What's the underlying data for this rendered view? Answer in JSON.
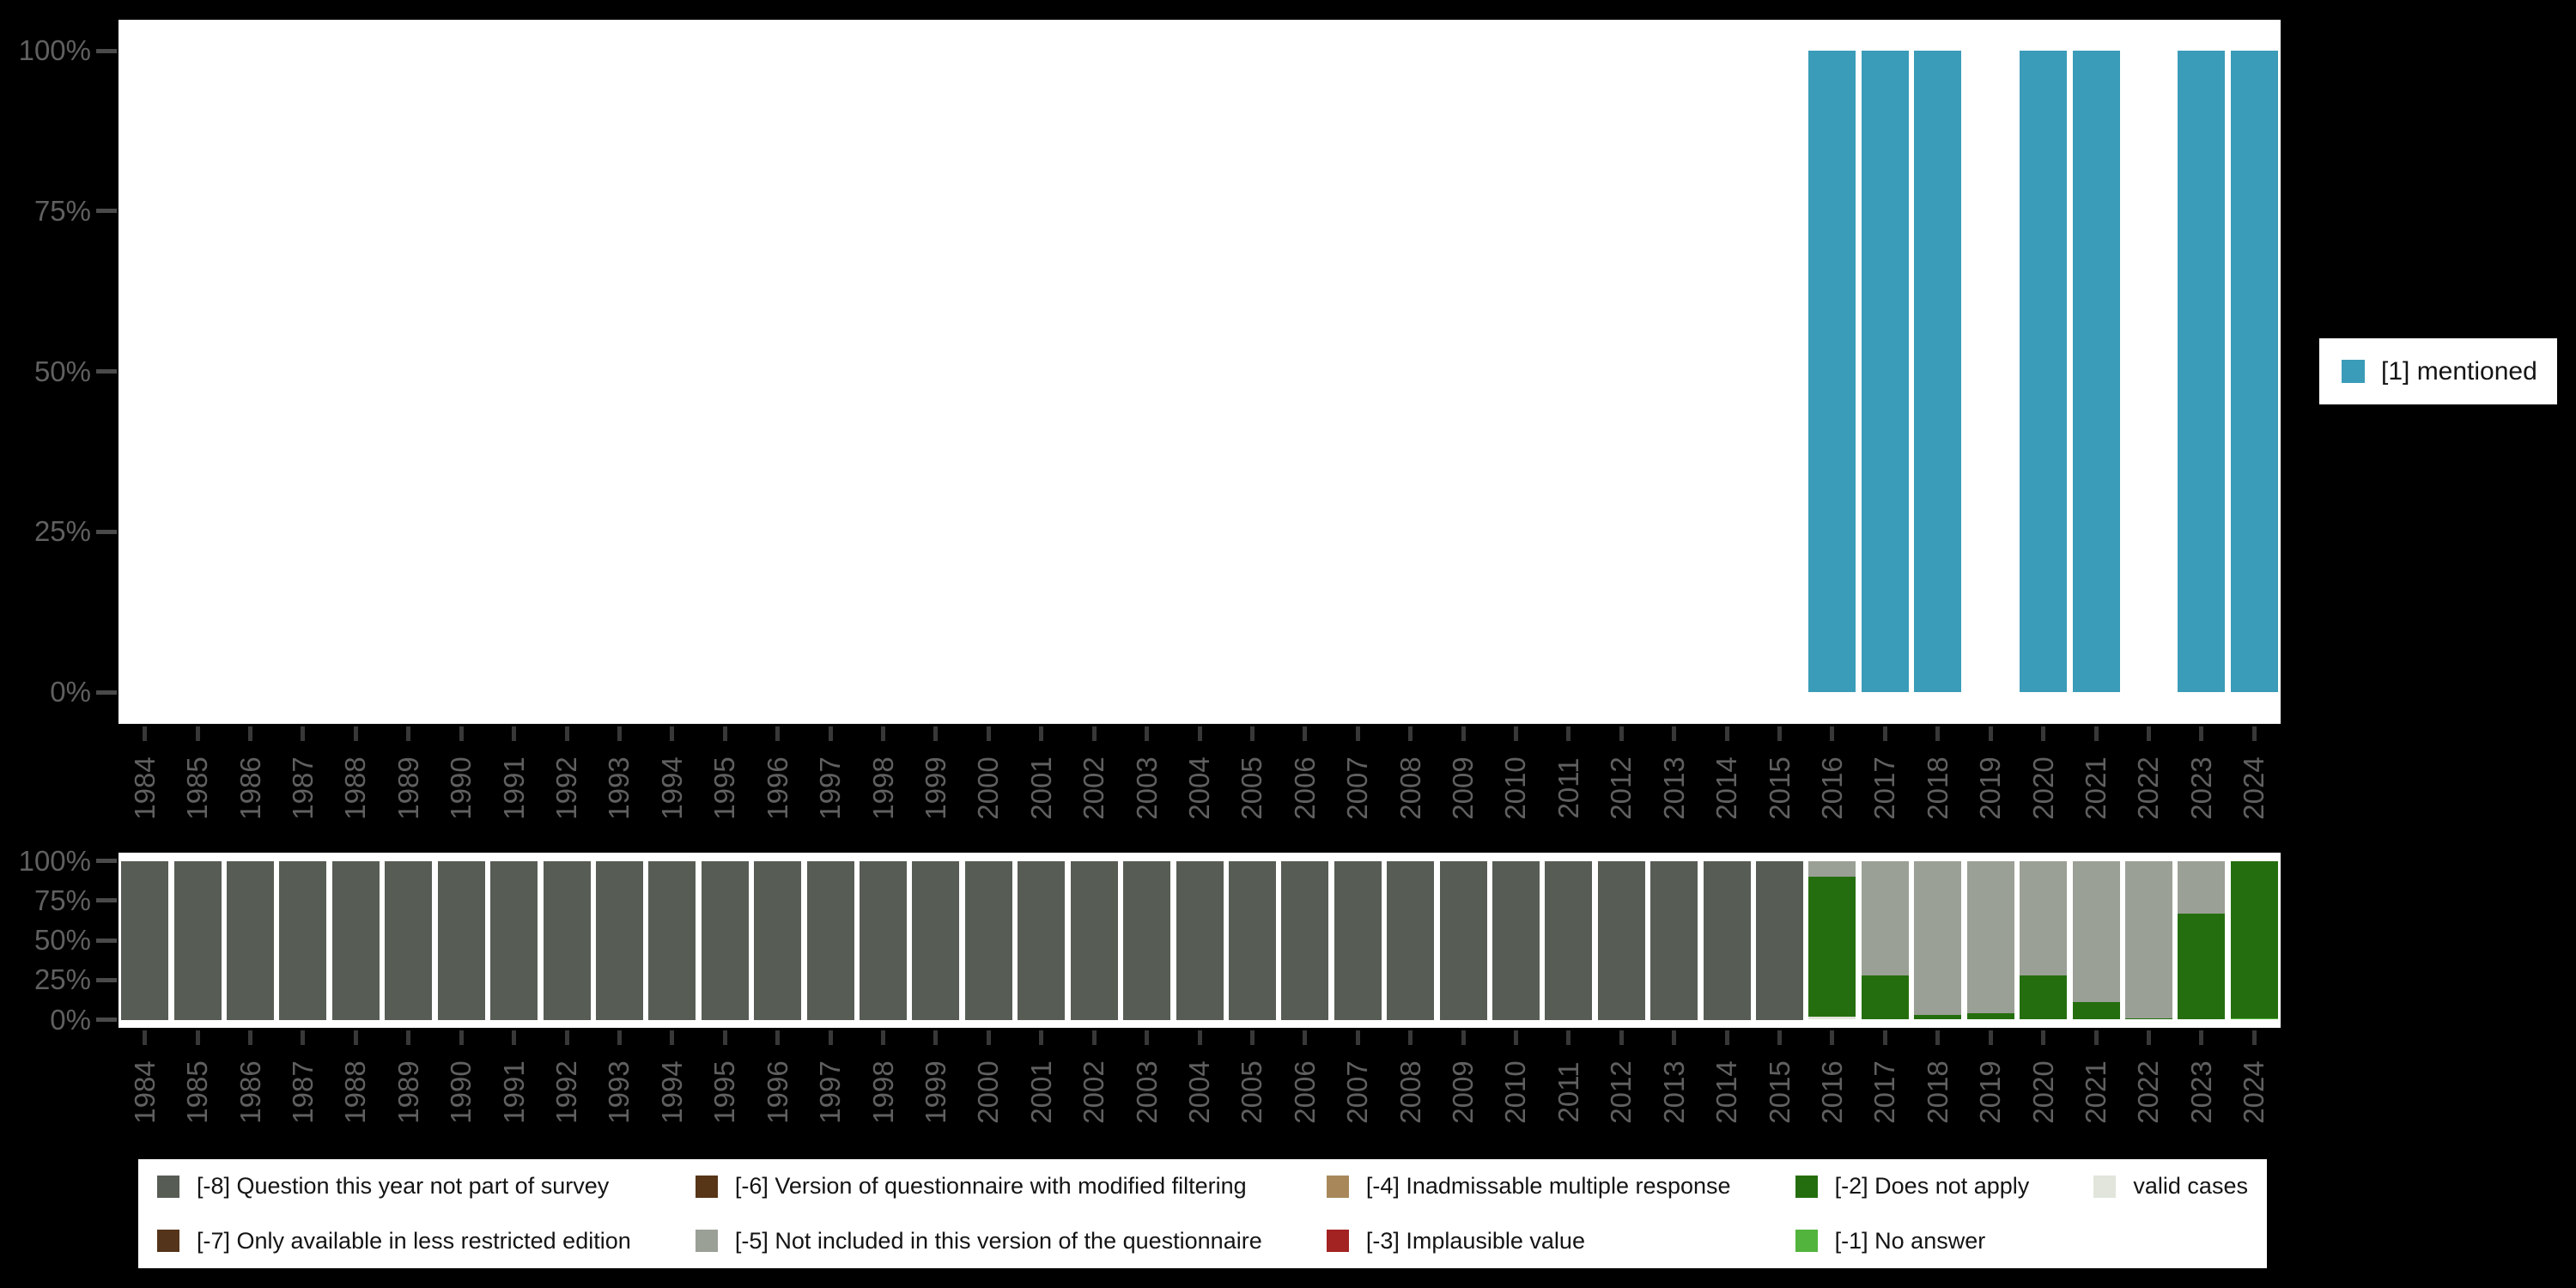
{
  "figure": {
    "background": "#000000",
    "panel_background": "#ffffff"
  },
  "palette": {
    "mentioned": "#3a9cb8",
    "q_not_part": "#575d55",
    "less_restricted": "#54341a",
    "modified_filtering": "#573517",
    "not_included": "#9aa095",
    "inadmissable": "#a8885a",
    "implausible": "#a32222",
    "does_not_apply": "#256e0f",
    "no_answer": "#52b43c",
    "valid": "#e1e5db",
    "axis_text": "#606060",
    "y_tick": "#4a4a4a",
    "x_tick": "#383838",
    "legend_text": "#141414"
  },
  "chart_data": [
    {
      "id": "mentioned_percent_by_year",
      "type": "bar",
      "title": "",
      "categories": [
        "1984",
        "1985",
        "1986",
        "1987",
        "1988",
        "1989",
        "1990",
        "1991",
        "1992",
        "1993",
        "1994",
        "1995",
        "1996",
        "1997",
        "1998",
        "1999",
        "2000",
        "2001",
        "2002",
        "2003",
        "2004",
        "2005",
        "2006",
        "2007",
        "2008",
        "2009",
        "2010",
        "2011",
        "2012",
        "2013",
        "2014",
        "2015",
        "2016",
        "2017",
        "2018",
        "2019",
        "2020",
        "2021",
        "2022",
        "2023",
        "2024"
      ],
      "series": [
        {
          "name": "[1] mentioned",
          "color_key": "mentioned",
          "values": [
            null,
            null,
            null,
            null,
            null,
            null,
            null,
            null,
            null,
            null,
            null,
            null,
            null,
            null,
            null,
            null,
            null,
            null,
            null,
            null,
            null,
            null,
            null,
            null,
            null,
            null,
            null,
            null,
            null,
            null,
            null,
            null,
            100,
            100,
            100,
            null,
            100,
            100,
            null,
            100,
            100
          ]
        }
      ],
      "ylim": [
        0,
        100
      ],
      "ytick_labels": [
        "100%",
        "75%",
        "50%",
        "25%",
        "0%"
      ],
      "grid": false,
      "legend_position": "right"
    },
    {
      "id": "missing_values_percent_by_year",
      "type": "stacked-bar",
      "title": "",
      "categories": [
        "1984",
        "1985",
        "1986",
        "1987",
        "1988",
        "1989",
        "1990",
        "1991",
        "1992",
        "1993",
        "1994",
        "1995",
        "1996",
        "1997",
        "1998",
        "1999",
        "2000",
        "2001",
        "2002",
        "2003",
        "2004",
        "2005",
        "2006",
        "2007",
        "2008",
        "2009",
        "2010",
        "2011",
        "2012",
        "2013",
        "2014",
        "2015",
        "2016",
        "2017",
        "2018",
        "2019",
        "2020",
        "2021",
        "2022",
        "2023",
        "2024"
      ],
      "stack_order_bottom_to_top": [
        "valid",
        "no_answer",
        "does_not_apply",
        "not_included",
        "q_not_part"
      ],
      "bars": [
        [
          [
            "q_not_part",
            100
          ]
        ],
        [
          [
            "q_not_part",
            100
          ]
        ],
        [
          [
            "q_not_part",
            100
          ]
        ],
        [
          [
            "q_not_part",
            100
          ]
        ],
        [
          [
            "q_not_part",
            100
          ]
        ],
        [
          [
            "q_not_part",
            100
          ]
        ],
        [
          [
            "q_not_part",
            100
          ]
        ],
        [
          [
            "q_not_part",
            100
          ]
        ],
        [
          [
            "q_not_part",
            100
          ]
        ],
        [
          [
            "q_not_part",
            100
          ]
        ],
        [
          [
            "q_not_part",
            100
          ]
        ],
        [
          [
            "q_not_part",
            100
          ]
        ],
        [
          [
            "q_not_part",
            100
          ]
        ],
        [
          [
            "q_not_part",
            100
          ]
        ],
        [
          [
            "q_not_part",
            100
          ]
        ],
        [
          [
            "q_not_part",
            100
          ]
        ],
        [
          [
            "q_not_part",
            100
          ]
        ],
        [
          [
            "q_not_part",
            100
          ]
        ],
        [
          [
            "q_not_part",
            100
          ]
        ],
        [
          [
            "q_not_part",
            100
          ]
        ],
        [
          [
            "q_not_part",
            100
          ]
        ],
        [
          [
            "q_not_part",
            100
          ]
        ],
        [
          [
            "q_not_part",
            100
          ]
        ],
        [
          [
            "q_not_part",
            100
          ]
        ],
        [
          [
            "q_not_part",
            100
          ]
        ],
        [
          [
            "q_not_part",
            100
          ]
        ],
        [
          [
            "q_not_part",
            100
          ]
        ],
        [
          [
            "q_not_part",
            100
          ]
        ],
        [
          [
            "q_not_part",
            100
          ]
        ],
        [
          [
            "q_not_part",
            100
          ]
        ],
        [
          [
            "q_not_part",
            100
          ]
        ],
        [
          [
            "q_not_part",
            100
          ]
        ],
        [
          [
            "valid",
            2
          ],
          [
            "does_not_apply",
            88
          ],
          [
            "not_included",
            10
          ]
        ],
        [
          [
            "does_not_apply",
            28
          ],
          [
            "not_included",
            72
          ]
        ],
        [
          [
            "does_not_apply",
            3
          ],
          [
            "not_included",
            97
          ]
        ],
        [
          [
            "does_not_apply",
            4
          ],
          [
            "not_included",
            96
          ]
        ],
        [
          [
            "does_not_apply",
            28
          ],
          [
            "not_included",
            72
          ]
        ],
        [
          [
            "does_not_apply",
            11
          ],
          [
            "not_included",
            89
          ]
        ],
        [
          [
            "does_not_apply",
            1
          ],
          [
            "not_included",
            99
          ]
        ],
        [
          [
            "does_not_apply",
            67
          ],
          [
            "not_included",
            33
          ]
        ],
        [
          [
            "no_answer",
            1
          ],
          [
            "does_not_apply",
            99
          ]
        ]
      ],
      "ylim": [
        0,
        100
      ],
      "ytick_labels": [
        "100%",
        "75%",
        "50%",
        "25%",
        "0%"
      ],
      "grid": false,
      "legend_position": "bottom"
    }
  ],
  "legends": {
    "right": [
      {
        "key": "mentioned",
        "label": "[1] mentioned"
      }
    ],
    "bottom": [
      {
        "key": "q_not_part",
        "label": "[-8] Question this year not part of survey"
      },
      {
        "key": "less_restricted",
        "label": "[-7] Only available in less restricted edition"
      },
      {
        "key": "modified_filtering",
        "label": "[-6] Version of questionnaire with modified filtering"
      },
      {
        "key": "not_included",
        "label": "[-5] Not included in this version of the questionnaire"
      },
      {
        "key": "inadmissable",
        "label": "[-4] Inadmissable multiple response"
      },
      {
        "key": "implausible",
        "label": "[-3] Implausible value"
      },
      {
        "key": "does_not_apply",
        "label": "[-2] Does not apply"
      },
      {
        "key": "no_answer",
        "label": "[-1] No answer"
      },
      {
        "key": "valid",
        "label": "valid cases"
      }
    ]
  }
}
